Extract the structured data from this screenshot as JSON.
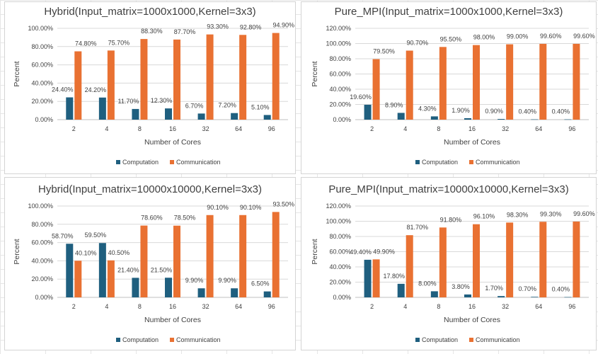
{
  "chart_data": [
    {
      "type": "bar",
      "title": "Hybrid(Input_matrix=1000x1000,Kernel=3x3)",
      "xlabel": "Number of Cores",
      "ylabel": "Percent",
      "categories": [
        "2",
        "4",
        "8",
        "16",
        "32",
        "64",
        "96"
      ],
      "ylim": [
        0,
        100
      ],
      "yticks": [
        "0.00%",
        "20.00%",
        "40.00%",
        "60.00%",
        "80.00%",
        "100.00%"
      ],
      "series": [
        {
          "name": "Computation",
          "color": "#1f5f7f",
          "values": [
            24.4,
            24.2,
            11.7,
            12.3,
            6.7,
            7.2,
            5.1
          ],
          "labels": [
            "24.40%",
            "24.20%",
            "11.70%",
            "12.30%",
            "6.70%",
            "7.20%",
            "5.10%"
          ]
        },
        {
          "name": "Communication",
          "color": "#e97132",
          "values": [
            74.8,
            75.7,
            88.3,
            87.7,
            93.3,
            92.8,
            94.9
          ],
          "labels": [
            "74.80%",
            "75.70%",
            "88.30%",
            "87.70%",
            "93.30%",
            "92.80%",
            "94.90%"
          ]
        }
      ],
      "grid": true,
      "legend": "bottom"
    },
    {
      "type": "bar",
      "title": "Pure_MPI(Input_matrix=1000x1000,Kernel=3x3)",
      "xlabel": "Number of Cores",
      "ylabel": "Percent",
      "categories": [
        "2",
        "4",
        "8",
        "16",
        "32",
        "64",
        "96"
      ],
      "ylim": [
        0,
        120
      ],
      "yticks": [
        "0.00%",
        "20.00%",
        "40.00%",
        "60.00%",
        "80.00%",
        "100.00%",
        "120.00%"
      ],
      "series": [
        {
          "name": "Computation",
          "color": "#1f5f7f",
          "values": [
            19.6,
            8.9,
            4.3,
            1.9,
            0.9,
            0.4,
            0.4
          ],
          "labels": [
            "19.60%",
            "8.90%",
            "4.30%",
            "1.90%",
            "0.90%",
            "0.40%",
            "0.40%"
          ]
        },
        {
          "name": "Communication",
          "color": "#e97132",
          "values": [
            79.5,
            90.7,
            95.5,
            98.0,
            99.0,
            99.6,
            99.6
          ],
          "labels": [
            "79.50%",
            "90.70%",
            "95.50%",
            "98.00%",
            "99.00%",
            "99.60%",
            "99.60%"
          ]
        }
      ],
      "grid": true,
      "legend": "bottom"
    },
    {
      "type": "bar",
      "title": "Hybrid(Input_matrix=10000x10000,Kernel=3x3)",
      "xlabel": "Number of Cores",
      "ylabel": "Percent",
      "categories": [
        "2",
        "4",
        "8",
        "16",
        "32",
        "64",
        "96"
      ],
      "ylim": [
        0,
        100
      ],
      "yticks": [
        "0.00%",
        "20.00%",
        "40.00%",
        "60.00%",
        "80.00%",
        "100.00%"
      ],
      "series": [
        {
          "name": "Computation",
          "color": "#1f5f7f",
          "values": [
            58.7,
            59.5,
            21.4,
            21.5,
            9.9,
            9.9,
            6.5
          ],
          "labels": [
            "58.70%",
            "59.50%",
            "21.40%",
            "21.50%",
            "9.90%",
            "9.90%",
            "6.50%"
          ]
        },
        {
          "name": "Communication",
          "color": "#e97132",
          "values": [
            40.1,
            40.5,
            78.6,
            78.5,
            90.1,
            90.1,
            93.5
          ],
          "labels": [
            "40.10%",
            "40.50%",
            "78.60%",
            "78.50%",
            "90.10%",
            "90.10%",
            "93.50%"
          ]
        }
      ],
      "grid": true,
      "legend": "bottom"
    },
    {
      "type": "bar",
      "title": "Pure_MPI(Input_matrix=10000x10000,Kernel=3x3)",
      "xlabel": "Number of Cores",
      "ylabel": "Percent",
      "categories": [
        "2",
        "4",
        "8",
        "16",
        "32",
        "64",
        "96"
      ],
      "ylim": [
        0,
        120
      ],
      "yticks": [
        "0.00%",
        "20.00%",
        "40.00%",
        "60.00%",
        "80.00%",
        "100.00%",
        "120.00%"
      ],
      "series": [
        {
          "name": "Computation",
          "color": "#1f5f7f",
          "values": [
            49.4,
            17.8,
            8.0,
            3.8,
            1.7,
            0.7,
            0.4
          ],
          "labels": [
            "49.40%",
            "17.80%",
            "8.00%",
            "3.80%",
            "1.70%",
            "0.70%",
            "0.40%"
          ]
        },
        {
          "name": "Communication",
          "color": "#e97132",
          "values": [
            49.9,
            81.7,
            91.8,
            96.1,
            98.3,
            99.3,
            99.6
          ],
          "labels": [
            "49.90%",
            "81.70%",
            "91.80%",
            "96.10%",
            "98.30%",
            "99.30%",
            "99.60%"
          ]
        }
      ],
      "grid": true,
      "legend": "bottom"
    }
  ]
}
